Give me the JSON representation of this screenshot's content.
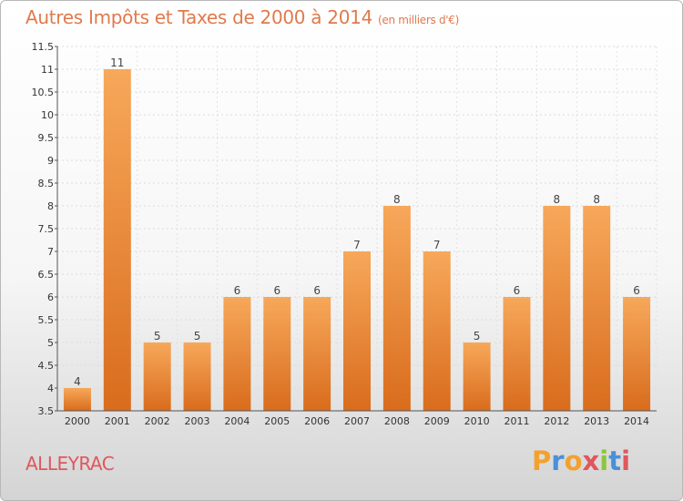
{
  "header": {
    "title": "Autres Impôts et Taxes de 2000 à 2014",
    "unit": "(en milliers d'€)"
  },
  "commune": "ALLEYRAC",
  "logo": {
    "letters": [
      "P",
      "r",
      "o",
      "x",
      "i",
      "t",
      "i"
    ],
    "colors": [
      "#f3a12e",
      "#4a90d9",
      "#f3a12e",
      "#e0575b",
      "#8cc63f",
      "#4a90d9",
      "#e0575b"
    ]
  },
  "colors": {
    "bar_top": "#f7a85a",
    "bar_bottom": "#d96c1d",
    "title": "#e07a4c"
  },
  "chart_data": {
    "type": "bar",
    "categories": [
      "2000",
      "2001",
      "2002",
      "2003",
      "2004",
      "2005",
      "2006",
      "2007",
      "2008",
      "2009",
      "2010",
      "2011",
      "2012",
      "2013",
      "2014"
    ],
    "values": [
      4,
      11,
      5,
      5,
      6,
      6,
      6,
      7,
      8,
      7,
      5,
      6,
      8,
      8,
      6
    ],
    "value_labels": [
      "4",
      "11",
      "5",
      "5",
      "6",
      "6",
      "6",
      "7",
      "8",
      "7",
      "5",
      "6",
      "8",
      "8",
      "6"
    ],
    "yticks": [
      "3.5",
      "4",
      "4.5",
      "5",
      "5.5",
      "6",
      "6.5",
      "7",
      "7.5",
      "8",
      "8.5",
      "9",
      "9.5",
      "10",
      "10.5",
      "11",
      "11.5"
    ],
    "ylim": [
      3.5,
      11.5
    ],
    "grid": true
  }
}
